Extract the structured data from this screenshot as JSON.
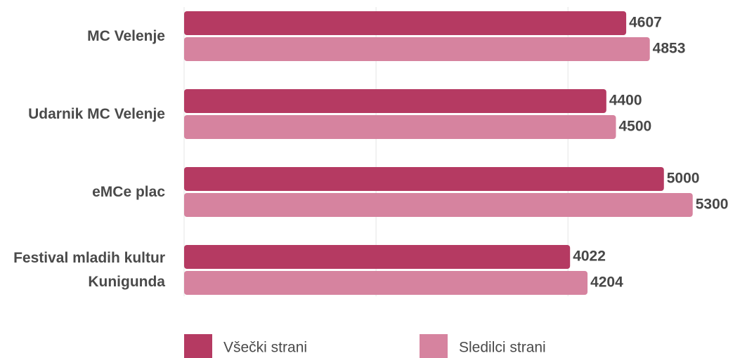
{
  "chart_data": {
    "type": "barh",
    "categories": [
      "MC Velenje",
      "Udarnik MC Velenje",
      "eMCe plac",
      "Festival mladih kultur Kunigunda"
    ],
    "series": [
      {
        "name": "Všečki strani",
        "color": "#b53a62",
        "values": [
          4607,
          4400,
          5000,
          4022
        ]
      },
      {
        "name": "Sledilci strani",
        "color": "#d6839f",
        "values": [
          4853,
          4500,
          5300,
          4204
        ]
      }
    ],
    "xlim": [
      0,
      5800
    ],
    "xticks": [
      0,
      2000,
      4000
    ],
    "grid": true,
    "legend": "bottom"
  }
}
